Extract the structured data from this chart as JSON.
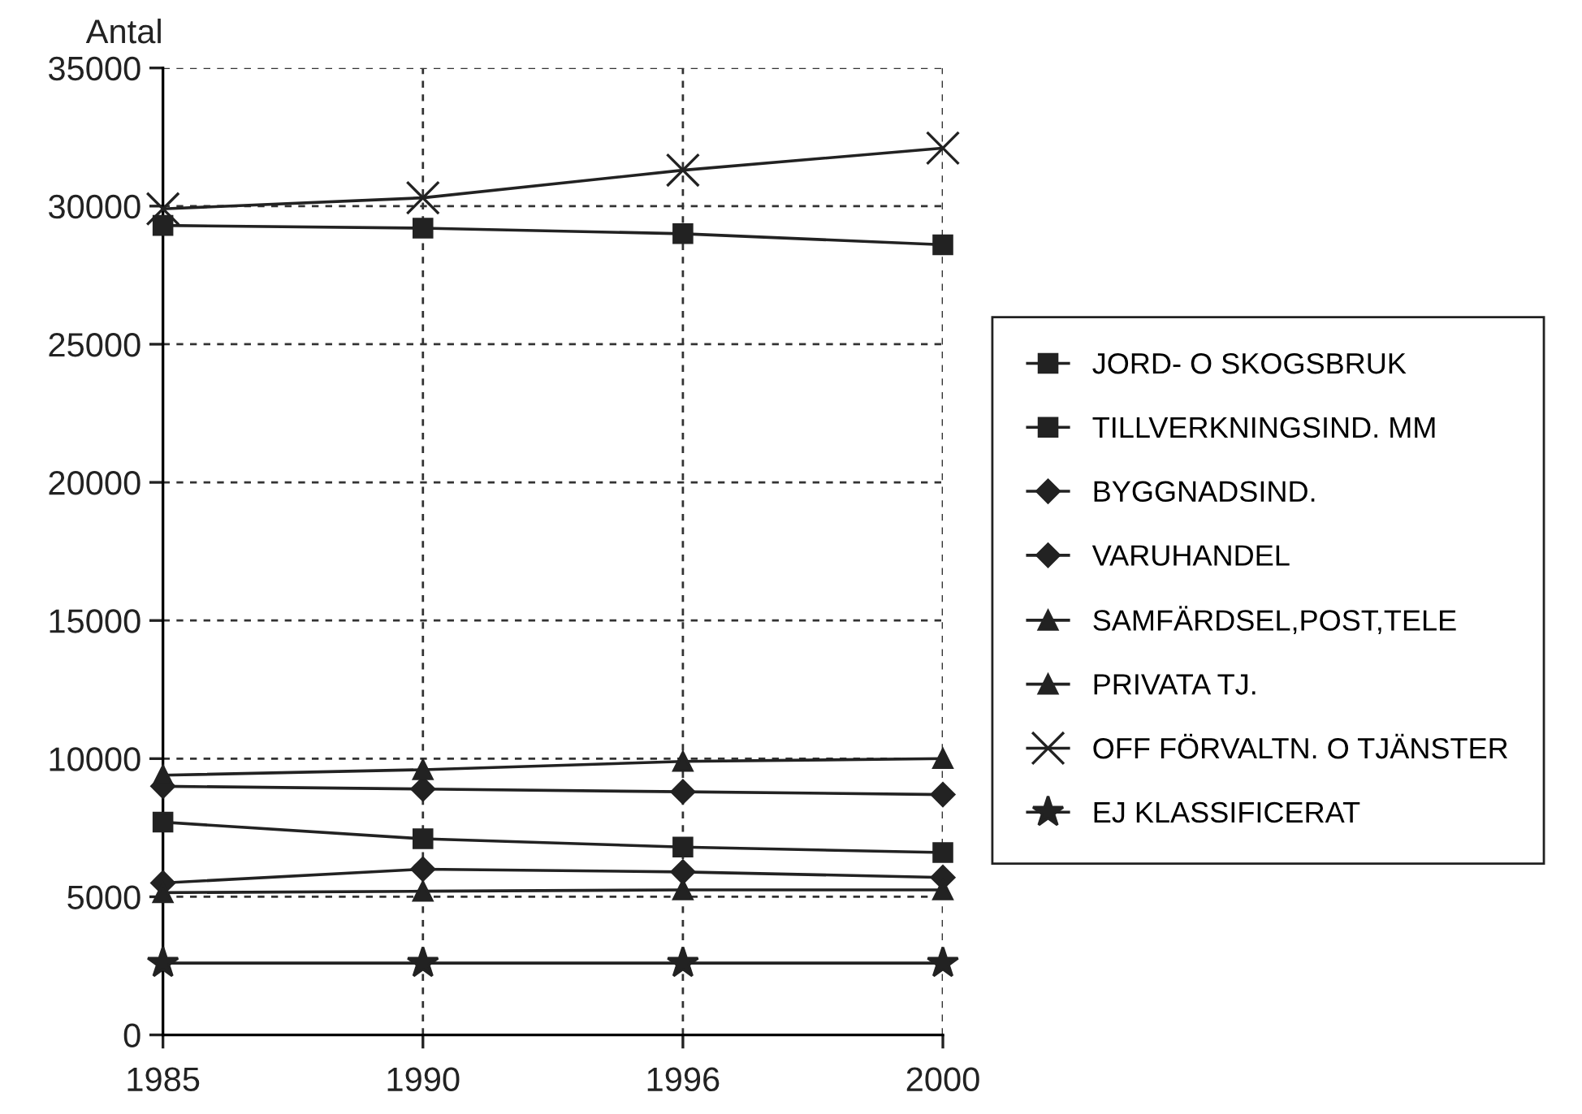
{
  "chart_data": {
    "type": "line",
    "ylabel": "Antal",
    "categories": [
      "1985",
      "1990",
      "1996",
      "2000"
    ],
    "ylim": [
      0,
      35000
    ],
    "yticks": [
      0,
      5000,
      10000,
      15000,
      20000,
      25000,
      30000,
      35000
    ],
    "grid": true,
    "legend": "right",
    "line_style": "solid",
    "series": [
      {
        "name": "JORD- O SKOGSBRUK",
        "color": "#222222",
        "marker": "square",
        "values": [
          7700,
          7100,
          6800,
          6600
        ]
      },
      {
        "name": "TILLVERKNINGSIND. MM",
        "color": "#222222",
        "marker": "square",
        "values": [
          29300,
          29200,
          29000,
          28600
        ]
      },
      {
        "name": "BYGGNADSIND.",
        "color": "#222222",
        "marker": "diamond",
        "values": [
          5500,
          6000,
          5900,
          5700
        ]
      },
      {
        "name": "VARUHANDEL",
        "color": "#222222",
        "marker": "diamond",
        "values": [
          9000,
          8900,
          8800,
          8700
        ]
      },
      {
        "name": "SAMFÄRDSEL,POST,TELE",
        "color": "#222222",
        "marker": "triangle",
        "values": [
          5150,
          5200,
          5250,
          5250
        ]
      },
      {
        "name": "PRIVATA TJ.",
        "color": "#222222",
        "marker": "triangle",
        "values": [
          9400,
          9600,
          9900,
          10000
        ]
      },
      {
        "name": "OFF FÖRVALTN. O TJÄNSTER",
        "color": "#222222",
        "marker": "cross",
        "values": [
          29900,
          30300,
          31300,
          32100
        ]
      },
      {
        "name": "EJ KLASSIFICERAT",
        "color": "#222222",
        "marker": "star",
        "values": [
          2600,
          2600,
          2600,
          2600
        ]
      }
    ]
  }
}
